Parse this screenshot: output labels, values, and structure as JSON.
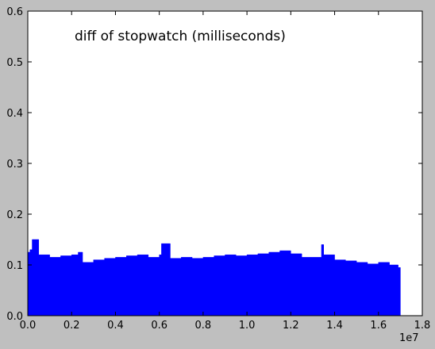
{
  "chart_data": {
    "type": "area",
    "annotation": "diff of stopwatch (milliseconds)",
    "x_offset_label": "1e7",
    "xlim": [
      0.0,
      1.8
    ],
    "ylim": [
      0.0,
      0.6
    ],
    "x_ticks": [
      0.0,
      0.2,
      0.4,
      0.6,
      0.8,
      1.0,
      1.2,
      1.4,
      1.6,
      1.8
    ],
    "x_tick_labels": [
      "0.0",
      "0.2",
      "0.4",
      "0.6",
      "0.8",
      "1.0",
      "1.2",
      "1.4",
      "1.6",
      "1.8"
    ],
    "y_ticks": [
      0.0,
      0.1,
      0.2,
      0.3,
      0.4,
      0.5,
      0.6
    ],
    "y_tick_labels": [
      "0.0",
      "0.1",
      "0.2",
      "0.3",
      "0.4",
      "0.5",
      "0.6"
    ],
    "fill_color": "#0000ff",
    "grid": false,
    "series": [
      {
        "x": [
          0.0,
          0.01,
          0.02,
          0.05,
          0.1,
          0.15,
          0.2,
          0.23,
          0.25,
          0.3,
          0.35,
          0.4,
          0.45,
          0.5,
          0.55,
          0.6,
          0.61,
          0.65,
          0.7,
          0.75,
          0.8,
          0.85,
          0.9,
          0.95,
          1.0,
          1.05,
          1.1,
          1.15,
          1.2,
          1.25,
          1.3,
          1.34,
          1.35,
          1.4,
          1.45,
          1.5,
          1.55,
          1.6,
          1.65,
          1.69,
          1.7
        ],
        "y": [
          0.125,
          0.13,
          0.15,
          0.12,
          0.115,
          0.118,
          0.12,
          0.125,
          0.105,
          0.11,
          0.113,
          0.115,
          0.118,
          0.12,
          0.115,
          0.12,
          0.142,
          0.113,
          0.115,
          0.113,
          0.115,
          0.118,
          0.12,
          0.118,
          0.12,
          0.122,
          0.125,
          0.128,
          0.122,
          0.115,
          0.115,
          0.14,
          0.12,
          0.11,
          0.108,
          0.105,
          0.102,
          0.105,
          0.1,
          0.095,
          0.0
        ]
      }
    ]
  }
}
